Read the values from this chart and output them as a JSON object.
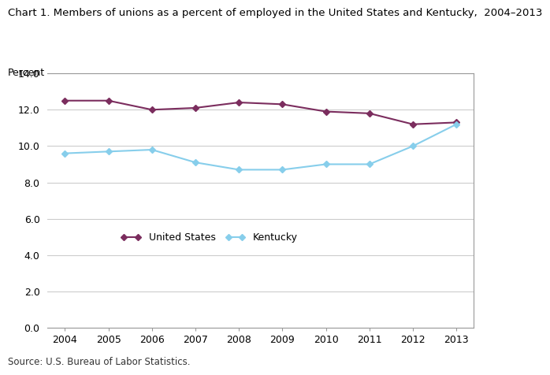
{
  "title": "Chart 1. Members of unions as a percent of employed in the United States and Kentucky,  2004–2013",
  "ylabel": "Percent",
  "source": "Source: U.S. Bureau of Labor Statistics.",
  "years": [
    2004,
    2005,
    2006,
    2007,
    2008,
    2009,
    2010,
    2011,
    2012,
    2013
  ],
  "us_values": [
    12.5,
    12.5,
    12.0,
    12.1,
    12.4,
    12.3,
    11.9,
    11.8,
    11.2,
    11.3
  ],
  "ky_values": [
    9.6,
    9.7,
    9.8,
    9.1,
    8.7,
    8.7,
    9.0,
    9.0,
    10.0,
    11.2
  ],
  "us_color": "#7B2D5E",
  "ky_color": "#87CEEB",
  "ylim": [
    0.0,
    14.0
  ],
  "yticks": [
    0.0,
    2.0,
    4.0,
    6.0,
    8.0,
    10.0,
    12.0,
    14.0
  ],
  "title_fontsize": 9.5,
  "label_fontsize": 9,
  "tick_fontsize": 9,
  "legend_fontsize": 9,
  "source_fontsize": 8.5,
  "bg_color": "#ffffff",
  "plot_bg_color": "#ffffff",
  "grid_color": "#cccccc"
}
